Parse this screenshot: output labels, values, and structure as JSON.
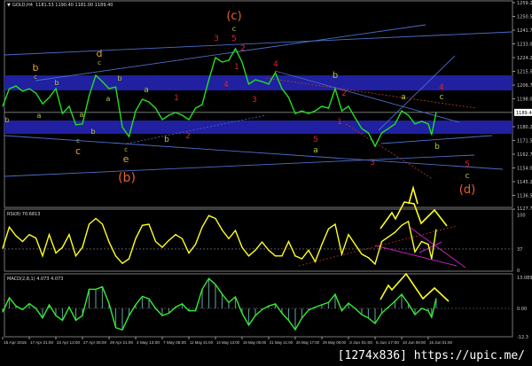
{
  "header": {
    "symbol": "GOLD,H4",
    "ohlc": "1181.53 1190.40 1181.00 1189.40"
  },
  "colors": {
    "background": "#000000",
    "price_line": "#22e022",
    "band": "#2020a0",
    "trendline": "#4a6fc8",
    "rsi": "#ffff22",
    "macd": "#33ee33",
    "wave_red": "#e0202a",
    "wave_orange": "#e8602a",
    "wave_olive": "#b8c832",
    "wave_amber": "#e8a040",
    "arrow": "#ffff22",
    "magenta_line": "#c020c0"
  },
  "chart_data": [
    {
      "type": "line",
      "title": "GOLD,H4",
      "ylim": [
        1127.79,
        1259.29
      ],
      "y_ticks": [
        "1259.29",
        "1250.54",
        "1241.79",
        "1233.04",
        "1224.29",
        "1215.54",
        "1206.79",
        "1198.04",
        "1180.29",
        "1171.54",
        "1162.79",
        "1154.04",
        "1145.29",
        "1136.54",
        "1127.79"
      ],
      "current_price": "1189.40",
      "x_tick_labels": [
        "15 Apr 2015",
        "17 Apr 21:00",
        "22 Apr 13:00",
        "27 Apr 05:00",
        "29 Apr 21:00",
        "4 May 13:00",
        "7 May 05:00",
        "11 May 21:00",
        "14 May 13:00",
        "19 May 05:00",
        "21 May 21:00",
        "26 May 17:00",
        "29 May 09:00",
        "3 Jun 01:00",
        "5 Jun 17:00",
        "10 Jun 09:00",
        "15 Jun 01:00"
      ],
      "x_tick_dates": [
        "2015-04-15T05:00",
        "2015-04-17T21:00",
        "2015-04-22T13:00",
        "2015-04-27T05:00",
        "2015-04-29T21:00",
        "2015-05-04T13:00",
        "2015-05-07T05:00",
        "2015-05-11T21:00",
        "2015-05-14T13:00",
        "2015-05-19T05:00",
        "2015-05-21T21:00",
        "2015-05-26T17:00",
        "2015-05-29T09:00",
        "2015-06-03T01:00",
        "2015-06-05T17:00",
        "2015-06-10T09:00",
        "2015-06-15T01:00"
      ],
      "x": [
        "2015-04-15T05:00",
        "2015-04-15T21:00",
        "2015-04-16T13:00",
        "2015-04-17T05:00",
        "2015-04-17T21:00",
        "2015-04-19T01:00",
        "2015-04-20T05:00",
        "2015-04-21T09:00",
        "2015-04-22T13:00",
        "2015-04-23T17:00",
        "2015-04-24T21:00",
        "2015-04-26T01:00",
        "2015-04-27T05:00",
        "2015-04-27T21:00",
        "2015-04-28T13:00",
        "2015-04-29T05:00",
        "2015-04-29T21:00",
        "2015-05-01T01:00",
        "2015-05-02T05:00",
        "2015-05-03T09:00",
        "2015-05-04T13:00",
        "2015-05-05T05:00",
        "2015-05-05T21:00",
        "2015-05-06T13:00",
        "2015-05-07T05:00",
        "2015-05-08T09:00",
        "2015-05-09T13:00",
        "2015-05-10T17:00",
        "2015-05-11T21:00",
        "2015-05-12T13:00",
        "2015-05-13T05:00",
        "2015-05-13T21:00",
        "2015-05-14T13:00",
        "2015-05-15T17:00",
        "2015-05-16T21:00",
        "2015-05-18T01:00",
        "2015-05-19T05:00",
        "2015-05-19T21:00",
        "2015-05-20T13:00",
        "2015-05-21T05:00",
        "2015-05-21T21:00",
        "2015-05-23T02:00",
        "2015-05-24T07:00",
        "2015-05-25T12:00",
        "2015-05-26T17:00",
        "2015-05-27T09:00",
        "2015-05-28T01:00",
        "2015-05-28T17:00",
        "2015-05-29T09:00",
        "2015-05-30T13:00",
        "2015-05-31T17:00",
        "2015-06-01T21:00",
        "2015-06-03T01:00",
        "2015-06-03T17:00",
        "2015-06-04T09:00",
        "2015-06-05T01:00",
        "2015-06-05T17:00",
        "2015-06-06T21:00",
        "2015-06-08T01:00",
        "2015-06-09T05:00",
        "2015-06-10T09:00",
        "2015-06-11T13:00",
        "2015-06-12T17:00",
        "2015-06-13T21:00",
        "2015-06-15T01:00",
        "2015-06-15T09:00",
        "2015-06-15T20:00"
      ],
      "series": [
        {
          "values": [
            1193.3,
            1204.5,
            1206.2,
            1202.9,
            1204.5,
            1201.7,
            1194.9,
            1198.9,
            1204.5,
            1188.7,
            1193.3,
            1181.5,
            1182,
            1200,
            1213,
            1209,
            1204.5,
            1205.6,
            1180,
            1174,
            1190.4,
            1197.8,
            1196,
            1192.1,
            1184.8,
            1187.6,
            1189.3,
            1187.6,
            1184.8,
            1192.1,
            1194.4,
            1210.2,
            1224.3,
            1221.5,
            1222.6,
            1230,
            1221.5,
            1207.4,
            1210.2,
            1209,
            1207.4,
            1214.7,
            1204.5,
            1198.9,
            1188.7,
            1190.4,
            1188.7,
            1190.4,
            1193.3,
            1192.1,
            1204.5,
            1190.4,
            1193.3,
            1185.9,
            1179.1,
            1176.3,
            1167.8,
            1176.3,
            1179.1,
            1182,
            1190.4,
            1187.6,
            1182,
            1183.7,
            1182,
            1175.2,
            1189.4
          ]
        }
      ]
    },
    {
      "type": "line",
      "title": "RSI(8) 70.6813",
      "ylim": [
        0,
        100
      ],
      "y_ticks": [
        "100",
        "37",
        "0"
      ],
      "level": 37,
      "series": [
        {
          "values": [
            38,
            75,
            60,
            50,
            62,
            56,
            25,
            62,
            30,
            40,
            62,
            25,
            40,
            80,
            90,
            80,
            49,
            25,
            12,
            20,
            55,
            78,
            80,
            50,
            40,
            52,
            62,
            55,
            30,
            45,
            75,
            95,
            90,
            70,
            55,
            69,
            40,
            25,
            35,
            49,
            35,
            25,
            25,
            50,
            25,
            20,
            35,
            15,
            45,
            72,
            80,
            28,
            62,
            45,
            28,
            22,
            11,
            50,
            58,
            66,
            78,
            85,
            32,
            50,
            45,
            20,
            70.68
          ]
        }
      ]
    },
    {
      "type": "line",
      "title": "MACD(2,8,1) 4.073 4.073",
      "y_ticks": [
        "13.089",
        "0.00",
        "-12.3"
      ],
      "series": [
        {
          "values": [
            -1.5,
            4.5,
            1,
            -0.5,
            2,
            0,
            -4,
            1.5,
            -3,
            -5,
            0.5,
            -5,
            -3,
            8,
            8,
            9,
            2,
            -8,
            -9,
            -3,
            1.5,
            5,
            4,
            0,
            -3,
            -2,
            0.5,
            1.9,
            -1,
            -1,
            8,
            12.5,
            10,
            6,
            2.5,
            4.8,
            -2,
            -7,
            -3,
            -0.5,
            1,
            1.9,
            -2,
            -5,
            -8.9,
            -4,
            -0.7,
            0.5,
            1.5,
            2.5,
            5.9,
            -1,
            2.2,
            0,
            -2.6,
            -4,
            -6.3,
            -2,
            0.5,
            3,
            5.9,
            2,
            -2.6,
            0,
            -1,
            -3.7,
            4.073
          ]
        }
      ]
    }
  ],
  "annotations": [
    {
      "text": "(c)",
      "color": "wave_orange"
    },
    {
      "text": "c",
      "color": "wave_olive"
    },
    {
      "text": "3",
      "color": "wave_red"
    },
    {
      "text": "5",
      "color": "wave_red"
    },
    {
      "text": "2",
      "color": "wave_red"
    },
    {
      "text": "1",
      "color": "wave_red"
    },
    {
      "text": "4",
      "color": "wave_red"
    },
    {
      "text": "3",
      "color": "wave_red"
    },
    {
      "text": "d",
      "color": "wave_amber"
    },
    {
      "text": "c",
      "color": "wave_olive"
    },
    {
      "text": "b",
      "color": "wave_amber"
    },
    {
      "text": "c",
      "color": "wave_olive"
    },
    {
      "text": "b",
      "color": "wave_olive"
    },
    {
      "text": "b",
      "color": "wave_olive"
    },
    {
      "text": "a",
      "color": "wave_olive"
    },
    {
      "text": "a",
      "color": "wave_olive"
    },
    {
      "text": "a",
      "color": "wave_olive"
    },
    {
      "text": "a",
      "color": "wave_olive"
    },
    {
      "text": "b",
      "color": "wave_olive"
    },
    {
      "text": "b",
      "color": "wave_olive"
    },
    {
      "text": "c",
      "color": "wave_olive"
    },
    {
      "text": "c",
      "color": "wave_amber"
    },
    {
      "text": "c",
      "color": "wave_olive"
    },
    {
      "text": "e",
      "color": "wave_amber"
    },
    {
      "text": "(b)",
      "color": "wave_orange"
    },
    {
      "text": "1",
      "color": "wave_red"
    },
    {
      "text": "2",
      "color": "wave_red"
    },
    {
      "text": "b",
      "color": "wave_olive"
    },
    {
      "text": "4",
      "color": "wave_red"
    },
    {
      "text": "b",
      "color": "wave_olive"
    },
    {
      "text": "2",
      "color": "wave_red"
    },
    {
      "text": "a",
      "color": "wave_olive"
    },
    {
      "text": "4",
      "color": "wave_red"
    },
    {
      "text": "c",
      "color": "wave_olive"
    },
    {
      "text": "1",
      "color": "wave_red"
    },
    {
      "text": "5",
      "color": "wave_red"
    },
    {
      "text": "a",
      "color": "wave_olive"
    },
    {
      "text": "3",
      "color": "wave_red"
    },
    {
      "text": "b",
      "color": "wave_olive"
    },
    {
      "text": "5",
      "color": "wave_red"
    },
    {
      "text": "c",
      "color": "wave_olive"
    },
    {
      "text": "(d)",
      "color": "wave_orange"
    }
  ],
  "watermark": "[1274x836] https://upic.me/"
}
